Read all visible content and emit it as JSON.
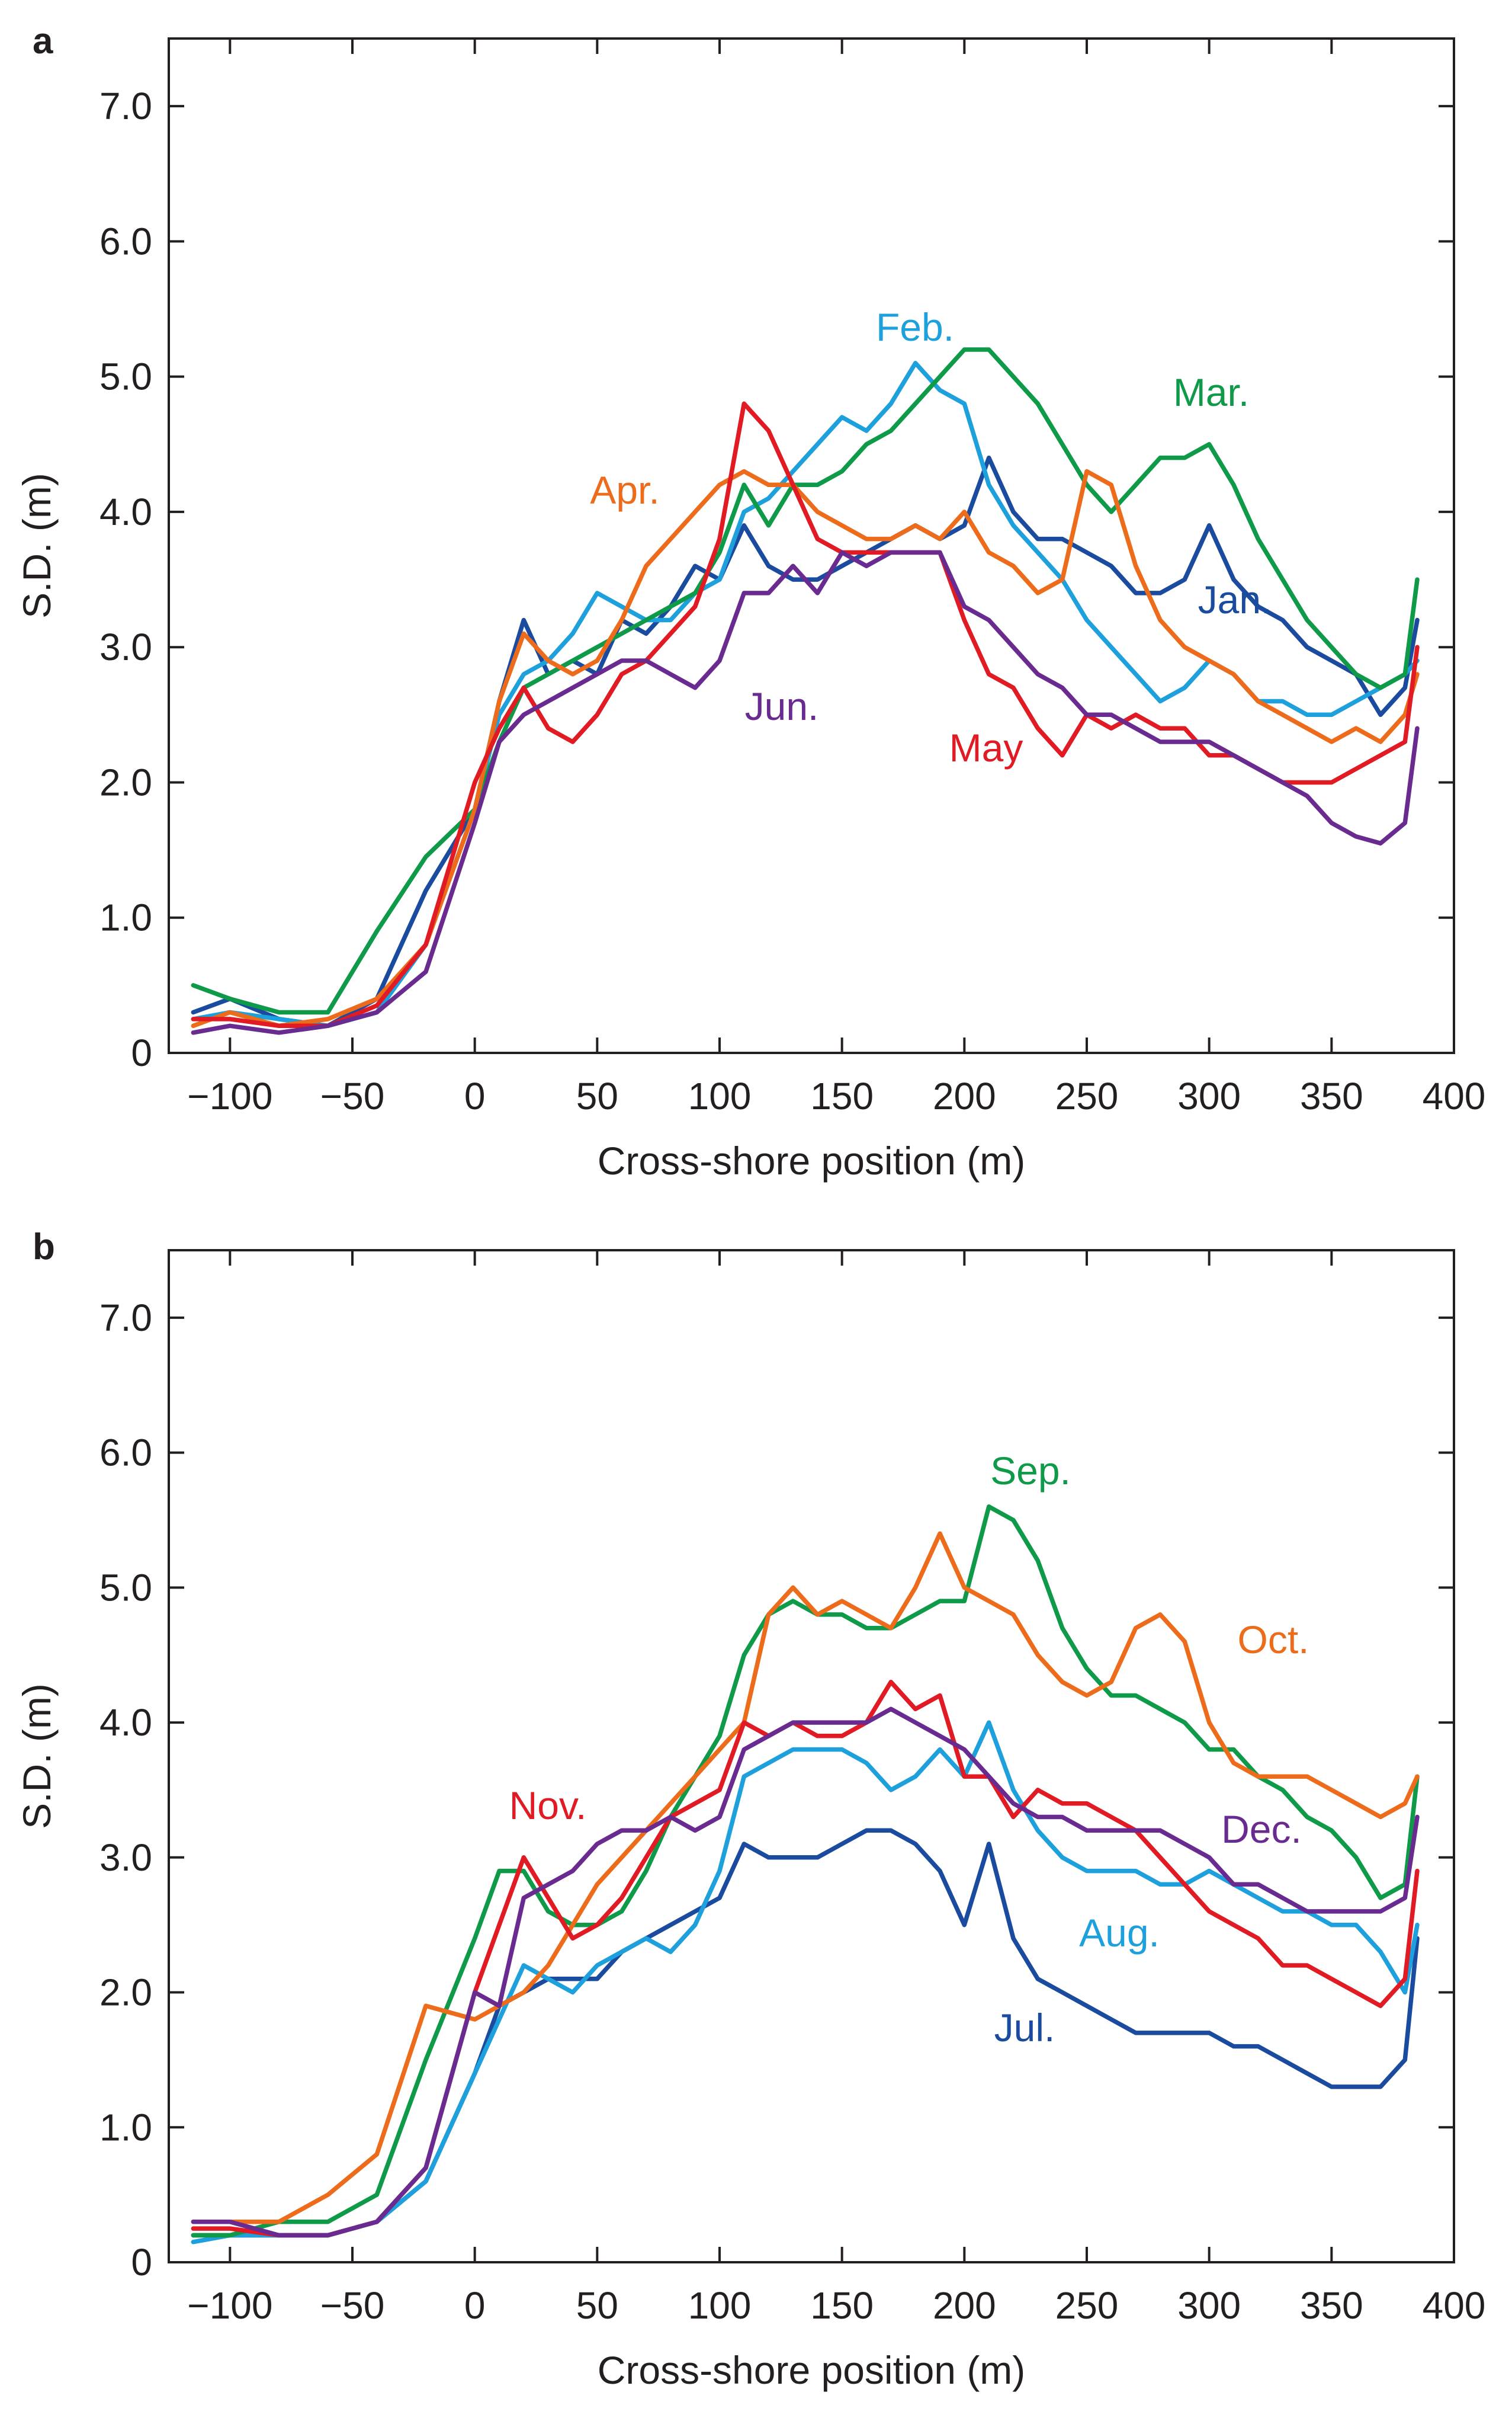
{
  "colors": {
    "Jan": "#1a4b9e",
    "Feb": "#1ea0dc",
    "Mar": "#0e9a48",
    "Apr": "#ec6c1c",
    "May": "#e01b24",
    "Jun": "#6a2b91",
    "Jul": "#1a4b9e",
    "Aug": "#1ea0dc",
    "Sep": "#0e9a48",
    "Oct": "#ec6c1c",
    "Nov": "#e01b24",
    "Dec": "#6a2b91"
  },
  "chart_data": [
    {
      "panel": "a",
      "type": "line",
      "xlabel": "Cross-shore position (m)",
      "ylabel": "S.D. (m)",
      "xlim": [
        -125,
        400
      ],
      "ylim": [
        0,
        7.5
      ],
      "xticks": [
        -100,
        -50,
        0,
        50,
        100,
        150,
        200,
        250,
        300,
        350,
        400
      ],
      "yticks": [
        0,
        1.0,
        2.0,
        3.0,
        4.0,
        5.0,
        6.0,
        7.0
      ],
      "ytick_labels": [
        "0",
        "1.0",
        "2.0",
        "3.0",
        "4.0",
        "5.0",
        "6.0",
        "7.0"
      ],
      "x": [
        -115,
        -100,
        -80,
        -60,
        -40,
        -20,
        0,
        10,
        20,
        30,
        40,
        50,
        60,
        70,
        80,
        90,
        100,
        110,
        120,
        130,
        140,
        150,
        160,
        170,
        180,
        190,
        200,
        210,
        220,
        230,
        240,
        250,
        260,
        270,
        280,
        290,
        300,
        310,
        320,
        330,
        340,
        350,
        360,
        370,
        380,
        385
      ],
      "series": [
        {
          "name": "Jan.",
          "color_key": "Jan",
          "values": [
            0.3,
            0.4,
            0.25,
            0.2,
            0.4,
            1.2,
            1.8,
            2.6,
            3.2,
            2.8,
            2.9,
            2.8,
            3.2,
            3.1,
            3.3,
            3.6,
            3.5,
            3.9,
            3.6,
            3.5,
            3.5,
            3.6,
            3.7,
            3.8,
            3.9,
            3.8,
            3.9,
            4.4,
            4.0,
            3.8,
            3.8,
            3.7,
            3.6,
            3.4,
            3.4,
            3.5,
            3.9,
            3.5,
            3.3,
            3.2,
            3.0,
            2.9,
            2.8,
            2.5,
            2.7,
            3.2
          ]
        },
        {
          "name": "Feb.",
          "color_key": "Feb",
          "values": [
            0.25,
            0.3,
            0.25,
            0.2,
            0.3,
            0.8,
            1.8,
            2.5,
            2.8,
            2.9,
            3.1,
            3.4,
            3.3,
            3.2,
            3.2,
            3.4,
            3.5,
            4.0,
            4.1,
            4.3,
            4.5,
            4.7,
            4.6,
            4.8,
            5.1,
            4.9,
            4.8,
            4.2,
            3.9,
            3.7,
            3.5,
            3.2,
            3.0,
            2.8,
            2.6,
            2.7,
            2.9,
            2.8,
            2.6,
            2.6,
            2.5,
            2.5,
            2.6,
            2.7,
            2.8,
            2.9
          ]
        },
        {
          "name": "Mar.",
          "color_key": "Mar",
          "values": [
            0.5,
            0.4,
            0.3,
            0.3,
            0.9,
            1.45,
            1.8,
            2.3,
            2.7,
            2.8,
            2.9,
            3.0,
            3.1,
            3.2,
            3.3,
            3.4,
            3.7,
            4.2,
            3.9,
            4.2,
            4.2,
            4.3,
            4.5,
            4.6,
            4.8,
            5.0,
            5.2,
            5.2,
            5.0,
            4.8,
            4.5,
            4.2,
            4.0,
            4.2,
            4.4,
            4.4,
            4.5,
            4.2,
            3.8,
            3.5,
            3.2,
            3.0,
            2.8,
            2.7,
            2.8,
            3.5
          ]
        },
        {
          "name": "Apr.",
          "color_key": "Apr",
          "values": [
            0.2,
            0.3,
            0.2,
            0.25,
            0.4,
            0.8,
            1.8,
            2.6,
            3.1,
            2.9,
            2.8,
            2.9,
            3.2,
            3.6,
            3.8,
            4.0,
            4.2,
            4.3,
            4.2,
            4.2,
            4.0,
            3.9,
            3.8,
            3.8,
            3.9,
            3.8,
            4.0,
            3.7,
            3.6,
            3.4,
            3.5,
            4.3,
            4.2,
            3.6,
            3.2,
            3.0,
            2.9,
            2.8,
            2.6,
            2.5,
            2.4,
            2.3,
            2.4,
            2.3,
            2.5,
            2.8
          ]
        },
        {
          "name": "May",
          "color_key": "May",
          "values": [
            0.25,
            0.25,
            0.2,
            0.2,
            0.35,
            0.8,
            2.0,
            2.4,
            2.7,
            2.4,
            2.3,
            2.5,
            2.8,
            2.9,
            3.1,
            3.3,
            3.8,
            4.8,
            4.6,
            4.2,
            3.8,
            3.7,
            3.7,
            3.7,
            3.7,
            3.7,
            3.2,
            2.8,
            2.7,
            2.4,
            2.2,
            2.5,
            2.4,
            2.5,
            2.4,
            2.4,
            2.2,
            2.2,
            2.1,
            2.0,
            2.0,
            2.0,
            2.1,
            2.2,
            2.3,
            3.0
          ]
        },
        {
          "name": "Jun.",
          "color_key": "Jun",
          "values": [
            0.15,
            0.2,
            0.15,
            0.2,
            0.3,
            0.6,
            1.7,
            2.3,
            2.5,
            2.6,
            2.7,
            2.8,
            2.9,
            2.9,
            2.8,
            2.7,
            2.9,
            3.4,
            3.4,
            3.6,
            3.4,
            3.7,
            3.6,
            3.7,
            3.7,
            3.7,
            3.3,
            3.2,
            3.0,
            2.8,
            2.7,
            2.5,
            2.5,
            2.4,
            2.3,
            2.3,
            2.3,
            2.2,
            2.1,
            2.0,
            1.9,
            1.7,
            1.6,
            1.55,
            1.7,
            2.4
          ]
        }
      ]
    },
    {
      "panel": "b",
      "type": "line",
      "xlabel": "Cross-shore position (m)",
      "ylabel": "S.D. (m)",
      "xlim": [
        -125,
        400
      ],
      "ylim": [
        0,
        7.5
      ],
      "xticks": [
        -100,
        -50,
        0,
        50,
        100,
        150,
        200,
        250,
        300,
        350,
        400
      ],
      "yticks": [
        0,
        1.0,
        2.0,
        3.0,
        4.0,
        5.0,
        6.0,
        7.0
      ],
      "ytick_labels": [
        "0",
        "1.0",
        "2.0",
        "3.0",
        "4.0",
        "5.0",
        "6.0",
        "7.0"
      ],
      "x": [
        -115,
        -100,
        -80,
        -60,
        -40,
        -20,
        0,
        10,
        20,
        30,
        40,
        50,
        60,
        70,
        80,
        90,
        100,
        110,
        120,
        130,
        140,
        150,
        160,
        170,
        180,
        190,
        200,
        210,
        220,
        230,
        240,
        250,
        260,
        270,
        280,
        290,
        300,
        310,
        320,
        330,
        340,
        350,
        360,
        370,
        380,
        385
      ],
      "series": [
        {
          "name": "Jul.",
          "color_key": "Jul",
          "values": [
            0.2,
            0.2,
            0.2,
            0.2,
            0.3,
            0.6,
            1.4,
            1.9,
            2.0,
            2.1,
            2.1,
            2.1,
            2.3,
            2.4,
            2.5,
            2.6,
            2.7,
            3.1,
            3.0,
            3.0,
            3.0,
            3.1,
            3.2,
            3.2,
            3.1,
            2.9,
            2.5,
            3.1,
            2.4,
            2.1,
            2.0,
            1.9,
            1.8,
            1.7,
            1.7,
            1.7,
            1.7,
            1.6,
            1.6,
            1.5,
            1.4,
            1.3,
            1.3,
            1.3,
            1.5,
            2.4
          ]
        },
        {
          "name": "Aug.",
          "color_key": "Aug",
          "values": [
            0.15,
            0.2,
            0.2,
            0.2,
            0.3,
            0.6,
            1.4,
            1.8,
            2.2,
            2.1,
            2.0,
            2.2,
            2.3,
            2.4,
            2.3,
            2.5,
            2.9,
            3.6,
            3.7,
            3.8,
            3.8,
            3.8,
            3.7,
            3.5,
            3.6,
            3.8,
            3.6,
            4.0,
            3.5,
            3.2,
            3.0,
            2.9,
            2.9,
            2.9,
            2.8,
            2.8,
            2.9,
            2.8,
            2.7,
            2.6,
            2.6,
            2.5,
            2.5,
            2.3,
            2.0,
            2.5
          ]
        },
        {
          "name": "Sep.",
          "color_key": "Sep",
          "values": [
            0.2,
            0.2,
            0.3,
            0.3,
            0.5,
            1.5,
            2.4,
            2.9,
            2.9,
            2.6,
            2.5,
            2.5,
            2.6,
            2.9,
            3.3,
            3.6,
            3.9,
            4.5,
            4.8,
            4.9,
            4.8,
            4.8,
            4.7,
            4.7,
            4.8,
            4.9,
            4.9,
            5.6,
            5.5,
            5.2,
            4.7,
            4.4,
            4.2,
            4.2,
            4.1,
            4.0,
            3.8,
            3.8,
            3.6,
            3.5,
            3.3,
            3.2,
            3.0,
            2.7,
            2.8,
            3.6
          ]
        },
        {
          "name": "Oct.",
          "color_key": "Oct",
          "values": [
            0.3,
            0.3,
            0.3,
            0.5,
            0.8,
            1.9,
            1.8,
            1.9,
            2.0,
            2.2,
            2.5,
            2.8,
            3.0,
            3.2,
            3.4,
            3.6,
            3.8,
            4.0,
            4.8,
            5.0,
            4.8,
            4.9,
            4.8,
            4.7,
            5.0,
            5.4,
            5.0,
            4.9,
            4.8,
            4.5,
            4.3,
            4.2,
            4.3,
            4.7,
            4.8,
            4.6,
            4.0,
            3.7,
            3.6,
            3.6,
            3.6,
            3.5,
            3.4,
            3.3,
            3.4,
            3.6
          ]
        },
        {
          "name": "Nov.",
          "color_key": "Nov",
          "values": [
            0.25,
            0.25,
            0.2,
            0.2,
            0.3,
            0.7,
            2.0,
            2.5,
            3.0,
            2.7,
            2.4,
            2.5,
            2.7,
            3.0,
            3.3,
            3.4,
            3.5,
            4.0,
            3.9,
            4.0,
            3.9,
            3.9,
            4.0,
            4.3,
            4.1,
            4.2,
            3.6,
            3.6,
            3.3,
            3.5,
            3.4,
            3.4,
            3.3,
            3.2,
            3.0,
            2.8,
            2.6,
            2.5,
            2.4,
            2.2,
            2.2,
            2.1,
            2.0,
            1.9,
            2.1,
            2.9
          ]
        },
        {
          "name": "Dec.",
          "color_key": "Dec",
          "values": [
            0.3,
            0.3,
            0.2,
            0.2,
            0.3,
            0.7,
            2.0,
            1.9,
            2.7,
            2.8,
            2.9,
            3.1,
            3.2,
            3.2,
            3.3,
            3.2,
            3.3,
            3.8,
            3.9,
            4.0,
            4.0,
            4.0,
            4.0,
            4.1,
            4.0,
            3.9,
            3.8,
            3.6,
            3.4,
            3.3,
            3.3,
            3.2,
            3.2,
            3.2,
            3.2,
            3.1,
            3.0,
            2.8,
            2.8,
            2.7,
            2.6,
            2.6,
            2.6,
            2.6,
            2.7,
            3.3
          ]
        }
      ]
    }
  ]
}
